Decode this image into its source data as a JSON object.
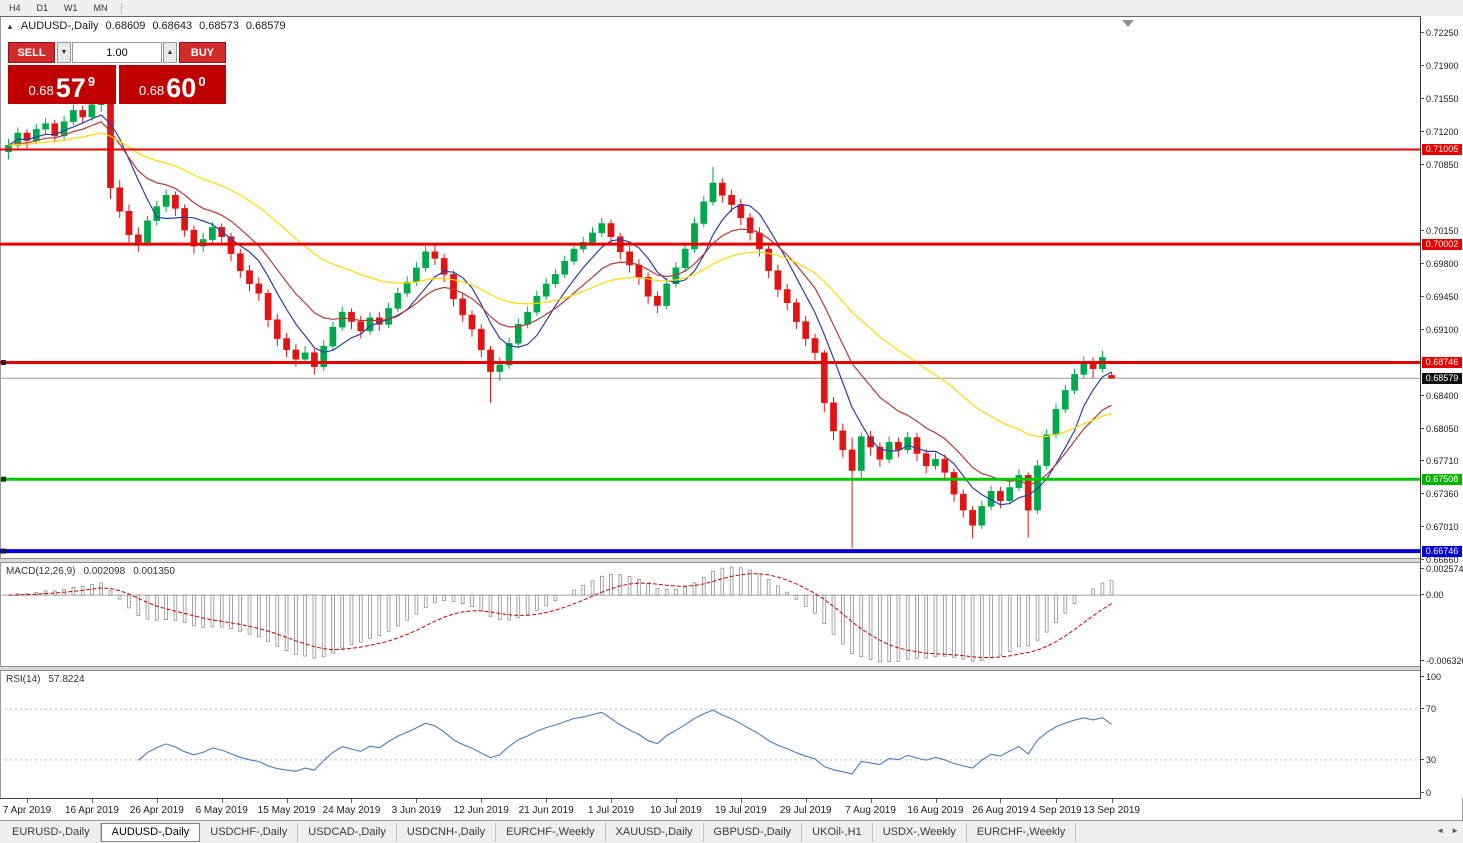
{
  "toolbar": {
    "timeframes": [
      "H4",
      "D1",
      "W1",
      "MN"
    ]
  },
  "symbol_header": {
    "collapse_icon": "▲",
    "title": "AUDUSD-,Daily",
    "open": "0.68609",
    "high": "0.68643",
    "low": "0.68573",
    "close": "0.68579"
  },
  "trade_panel": {
    "sell_label": "SELL",
    "buy_label": "BUY",
    "volume": "1.00",
    "sell_price": {
      "prefix": "0.68",
      "big": "57",
      "sup": "9"
    },
    "buy_price": {
      "prefix": "0.68",
      "big": "60",
      "sup": "0"
    }
  },
  "icons": {
    "collapse": "▲",
    "volume_down": "▼",
    "volume_up": "▲",
    "scroll_left": "◄",
    "scroll_right": "►"
  },
  "price_axis": {
    "labels": [
      "0.72250",
      "0.71900",
      "0.71550",
      "0.71200",
      "0.70850",
      "0.70150",
      "0.69800",
      "0.69450",
      "0.69100",
      "0.68400",
      "0.68050",
      "0.67710",
      "0.67360",
      "0.67010",
      "0.66660"
    ],
    "badges": [
      {
        "text": "0.71005",
        "color": "#E80000"
      },
      {
        "text": "0.70002",
        "color": "#E80000"
      },
      {
        "text": "0.68746",
        "color": "#E80000"
      },
      {
        "text": "0.68579",
        "color": "#101010"
      },
      {
        "text": "0.67508",
        "color": "#00B400"
      },
      {
        "text": "0.66746",
        "color": "#0000D8"
      }
    ]
  },
  "hlines": [
    {
      "price": 0.71005,
      "color": "#E80000",
      "width": 2,
      "handle": false
    },
    {
      "price": 0.70002,
      "color": "#E80000",
      "width": 3,
      "handle": false
    },
    {
      "price": 0.68746,
      "color": "#E80000",
      "width": 3,
      "handle": true
    },
    {
      "price": 0.68579,
      "color": "#9a9a9a",
      "width": 1,
      "handle": false
    },
    {
      "price": 0.67508,
      "color": "#00C800",
      "width": 3,
      "handle": true
    },
    {
      "price": 0.66746,
      "color": "#0000D8",
      "width": 4,
      "handle": true
    }
  ],
  "indicators": {
    "macd": {
      "label": "MACD(12,26,9)",
      "value_macd": "0.002098",
      "value_signal": "0.001350",
      "fast": 12,
      "slow": 26,
      "signal": 9,
      "axis": [
        "0.002574",
        "0.00",
        "-0.006326"
      ]
    },
    "rsi": {
      "label": "RSI(14)",
      "value": "57.8224",
      "period": 14,
      "levels": [
        70,
        30
      ],
      "axis": [
        "100",
        "70",
        "30",
        "0"
      ],
      "axis_values": [
        100,
        70,
        30,
        0
      ]
    }
  },
  "date_axis": [
    {
      "label": "7 Apr 2019",
      "i": 2
    },
    {
      "label": "16 Apr 2019",
      "i": 9
    },
    {
      "label": "26 Apr 2019",
      "i": 16
    },
    {
      "label": "6 May 2019",
      "i": 23
    },
    {
      "label": "15 May 2019",
      "i": 30
    },
    {
      "label": "24 May 2019",
      "i": 37
    },
    {
      "label": "3 Jun 2019",
      "i": 44
    },
    {
      "label": "12 Jun 2019",
      "i": 51
    },
    {
      "label": "21 Jun 2019",
      "i": 58
    },
    {
      "label": "1 Jul 2019",
      "i": 65
    },
    {
      "label": "10 Jul 2019",
      "i": 72
    },
    {
      "label": "19 Jul 2019",
      "i": 79
    },
    {
      "label": "29 Jul 2019",
      "i": 86
    },
    {
      "label": "7 Aug 2019",
      "i": 93
    },
    {
      "label": "16 Aug 2019",
      "i": 100
    },
    {
      "label": "26 Aug 2019",
      "i": 107
    },
    {
      "label": "4 Sep 2019",
      "i": 113
    },
    {
      "label": "13 Sep 2019",
      "i": 119
    }
  ],
  "bottom_tabs": {
    "active_index": 1,
    "tabs": [
      "EURUSD-,Daily",
      "AUDUSD-,Daily",
      "USDCHF-,Daily",
      "USDCAD-,Daily",
      "USDCNH-,Daily",
      "EURCHF-,Weekly",
      "XAUUSD-,Daily",
      "GBPUSD-,Daily",
      "UKOil-,H1",
      "USDX-,Weekly",
      "EURCHF-,Weekly"
    ]
  },
  "colors": {
    "bull": "#00A94C",
    "bear": "#E01414",
    "ma_fast": "#2F3F9E",
    "ma_mid": "#B03A3A",
    "ma_slow": "#FFD800",
    "macd_hist": "#909090",
    "macd_signal": "#CC0000",
    "rsi_line": "#4A7EBB"
  },
  "chart_data": {
    "type": "candlestick",
    "symbol": "AUDUSD-",
    "timeframe": "Daily",
    "ylim": [
      0.66662,
      0.7241
    ],
    "moving_averages": [
      {
        "period": 6,
        "kind": "sma",
        "color": "#2F3F9E"
      },
      {
        "period": 12,
        "kind": "ema",
        "color": "#B03A3A"
      },
      {
        "period": 30,
        "kind": "ema",
        "color": "#FFD800"
      }
    ],
    "candles": [
      [
        0.7098,
        0.7112,
        0.709,
        0.7105
      ],
      [
        0.7105,
        0.7124,
        0.71,
        0.7118
      ],
      [
        0.7118,
        0.7122,
        0.7102,
        0.711
      ],
      [
        0.711,
        0.7128,
        0.7106,
        0.7122
      ],
      [
        0.7122,
        0.7134,
        0.7116,
        0.7128
      ],
      [
        0.7128,
        0.7132,
        0.7108,
        0.7115
      ],
      [
        0.7115,
        0.7136,
        0.7111,
        0.713
      ],
      [
        0.713,
        0.7148,
        0.7126,
        0.7142
      ],
      [
        0.7142,
        0.7147,
        0.7128,
        0.7135
      ],
      [
        0.7135,
        0.7153,
        0.7131,
        0.7148
      ],
      [
        0.7148,
        0.7158,
        0.714,
        0.7152
      ],
      [
        0.715,
        0.7154,
        0.7048,
        0.706
      ],
      [
        0.706,
        0.7068,
        0.7028,
        0.7035
      ],
      [
        0.7035,
        0.7042,
        0.7002,
        0.701
      ],
      [
        0.701,
        0.7018,
        0.6992,
        0.7002
      ],
      [
        0.7002,
        0.703,
        0.6998,
        0.7025
      ],
      [
        0.7025,
        0.7046,
        0.702,
        0.704
      ],
      [
        0.704,
        0.7058,
        0.7034,
        0.7052
      ],
      [
        0.7052,
        0.7056,
        0.703,
        0.7038
      ],
      [
        0.7038,
        0.7042,
        0.7008,
        0.7015
      ],
      [
        0.7015,
        0.702,
        0.699,
        0.6998
      ],
      [
        0.6998,
        0.7012,
        0.6992,
        0.7005
      ],
      [
        0.7005,
        0.7024,
        0.7,
        0.7018
      ],
      [
        0.7018,
        0.7022,
        0.7,
        0.7008
      ],
      [
        0.7008,
        0.7012,
        0.6982,
        0.699
      ],
      [
        0.699,
        0.6995,
        0.6964,
        0.6972
      ],
      [
        0.6972,
        0.6978,
        0.695,
        0.6958
      ],
      [
        0.6958,
        0.6965,
        0.694,
        0.6948
      ],
      [
        0.6948,
        0.6952,
        0.6912,
        0.692
      ],
      [
        0.692,
        0.6926,
        0.6892,
        0.69
      ],
      [
        0.69,
        0.6906,
        0.688,
        0.6888
      ],
      [
        0.6888,
        0.6894,
        0.687,
        0.6878
      ],
      [
        0.6878,
        0.6892,
        0.6874,
        0.6885
      ],
      [
        0.6885,
        0.6889,
        0.6862,
        0.687
      ],
      [
        0.687,
        0.6898,
        0.6866,
        0.6892
      ],
      [
        0.6892,
        0.6918,
        0.6888,
        0.6912
      ],
      [
        0.6912,
        0.6934,
        0.6908,
        0.6928
      ],
      [
        0.6928,
        0.6932,
        0.691,
        0.6918
      ],
      [
        0.6918,
        0.6924,
        0.69,
        0.6908
      ],
      [
        0.6908,
        0.6928,
        0.6904,
        0.6922
      ],
      [
        0.6922,
        0.6928,
        0.6908,
        0.6915
      ],
      [
        0.6915,
        0.6938,
        0.6911,
        0.6932
      ],
      [
        0.6932,
        0.6954,
        0.6928,
        0.6948
      ],
      [
        0.6948,
        0.6966,
        0.6944,
        0.696
      ],
      [
        0.696,
        0.6981,
        0.6956,
        0.6975
      ],
      [
        0.6975,
        0.6998,
        0.6971,
        0.6992
      ],
      [
        0.6992,
        0.7,
        0.6978,
        0.6985
      ],
      [
        0.6985,
        0.699,
        0.696,
        0.6968
      ],
      [
        0.6968,
        0.6972,
        0.6934,
        0.6942
      ],
      [
        0.6942,
        0.6948,
        0.6918,
        0.6925
      ],
      [
        0.6925,
        0.693,
        0.6902,
        0.691
      ],
      [
        0.691,
        0.6915,
        0.688,
        0.6888
      ],
      [
        0.6888,
        0.6892,
        0.6832,
        0.6865
      ],
      [
        0.6865,
        0.688,
        0.6855,
        0.6872
      ],
      [
        0.6872,
        0.6901,
        0.6868,
        0.6895
      ],
      [
        0.6895,
        0.6921,
        0.6891,
        0.6915
      ],
      [
        0.6915,
        0.6934,
        0.6911,
        0.6928
      ],
      [
        0.6928,
        0.6951,
        0.6924,
        0.6945
      ],
      [
        0.6945,
        0.6964,
        0.6941,
        0.6958
      ],
      [
        0.6958,
        0.6974,
        0.6954,
        0.6968
      ],
      [
        0.6968,
        0.6988,
        0.6964,
        0.6982
      ],
      [
        0.6982,
        0.7001,
        0.6978,
        0.6995
      ],
      [
        0.6995,
        0.7008,
        0.6991,
        0.7002
      ],
      [
        0.7002,
        0.7018,
        0.6998,
        0.7012
      ],
      [
        0.7012,
        0.7028,
        0.7008,
        0.7022
      ],
      [
        0.7022,
        0.7026,
        0.7,
        0.7008
      ],
      [
        0.7008,
        0.7012,
        0.6984,
        0.6992
      ],
      [
        0.6992,
        0.6998,
        0.697,
        0.6978
      ],
      [
        0.6978,
        0.6984,
        0.6957,
        0.6965
      ],
      [
        0.6965,
        0.697,
        0.6937,
        0.6945
      ],
      [
        0.6945,
        0.695,
        0.6927,
        0.6935
      ],
      [
        0.6935,
        0.6964,
        0.6931,
        0.6958
      ],
      [
        0.6958,
        0.6981,
        0.6954,
        0.6975
      ],
      [
        0.6975,
        0.7001,
        0.6971,
        0.6995
      ],
      [
        0.6995,
        0.7028,
        0.6991,
        0.7022
      ],
      [
        0.7022,
        0.7051,
        0.7018,
        0.7045
      ],
      [
        0.7045,
        0.7082,
        0.7041,
        0.7065
      ],
      [
        0.7065,
        0.707,
        0.7044,
        0.7052
      ],
      [
        0.7052,
        0.7058,
        0.7034,
        0.7042
      ],
      [
        0.7042,
        0.7048,
        0.702,
        0.7028
      ],
      [
        0.7028,
        0.7033,
        0.7004,
        0.7012
      ],
      [
        0.7012,
        0.7018,
        0.6987,
        0.6995
      ],
      [
        0.6995,
        0.7,
        0.6964,
        0.6972
      ],
      [
        0.6972,
        0.6978,
        0.6944,
        0.6952
      ],
      [
        0.6952,
        0.6958,
        0.693,
        0.6938
      ],
      [
        0.6938,
        0.6942,
        0.691,
        0.6918
      ],
      [
        0.6918,
        0.6924,
        0.6892,
        0.69
      ],
      [
        0.69,
        0.6905,
        0.6877,
        0.6885
      ],
      [
        0.6885,
        0.6888,
        0.6822,
        0.6832
      ],
      [
        0.6832,
        0.6838,
        0.6792,
        0.6802
      ],
      [
        0.6802,
        0.681,
        0.6774,
        0.6782
      ],
      [
        0.6782,
        0.6795,
        0.6678,
        0.676
      ],
      [
        0.676,
        0.68,
        0.6752,
        0.6796
      ],
      [
        0.6796,
        0.6802,
        0.6776,
        0.6785
      ],
      [
        0.6785,
        0.679,
        0.6764,
        0.6772
      ],
      [
        0.6772,
        0.6796,
        0.6768,
        0.679
      ],
      [
        0.679,
        0.6795,
        0.6774,
        0.6782
      ],
      [
        0.6782,
        0.6801,
        0.6778,
        0.6795
      ],
      [
        0.6795,
        0.68,
        0.677,
        0.6778
      ],
      [
        0.6778,
        0.6783,
        0.6757,
        0.6765
      ],
      [
        0.6765,
        0.6779,
        0.6761,
        0.6772
      ],
      [
        0.6772,
        0.6777,
        0.675,
        0.6758
      ],
      [
        0.6758,
        0.6762,
        0.6727,
        0.6735
      ],
      [
        0.6735,
        0.674,
        0.671,
        0.6718
      ],
      [
        0.6718,
        0.6722,
        0.6688,
        0.6702
      ],
      [
        0.6702,
        0.6728,
        0.6698,
        0.6722
      ],
      [
        0.6722,
        0.6744,
        0.6718,
        0.6738
      ],
      [
        0.6738,
        0.6743,
        0.672,
        0.6728
      ],
      [
        0.6728,
        0.6748,
        0.6724,
        0.6742
      ],
      [
        0.6742,
        0.6761,
        0.6738,
        0.6755
      ],
      [
        0.6755,
        0.6758,
        0.6689,
        0.6718
      ],
      [
        0.6718,
        0.6771,
        0.6714,
        0.6765
      ],
      [
        0.6765,
        0.6804,
        0.6761,
        0.6798
      ],
      [
        0.6798,
        0.6831,
        0.6794,
        0.6825
      ],
      [
        0.6825,
        0.6851,
        0.6821,
        0.6845
      ],
      [
        0.6845,
        0.6868,
        0.6841,
        0.6862
      ],
      [
        0.6862,
        0.6881,
        0.6858,
        0.6875
      ],
      [
        0.6875,
        0.688,
        0.6858,
        0.6868
      ],
      [
        0.6868,
        0.6887,
        0.6864,
        0.688
      ],
      [
        0.68609,
        0.68643,
        0.68573,
        0.68579
      ]
    ]
  }
}
